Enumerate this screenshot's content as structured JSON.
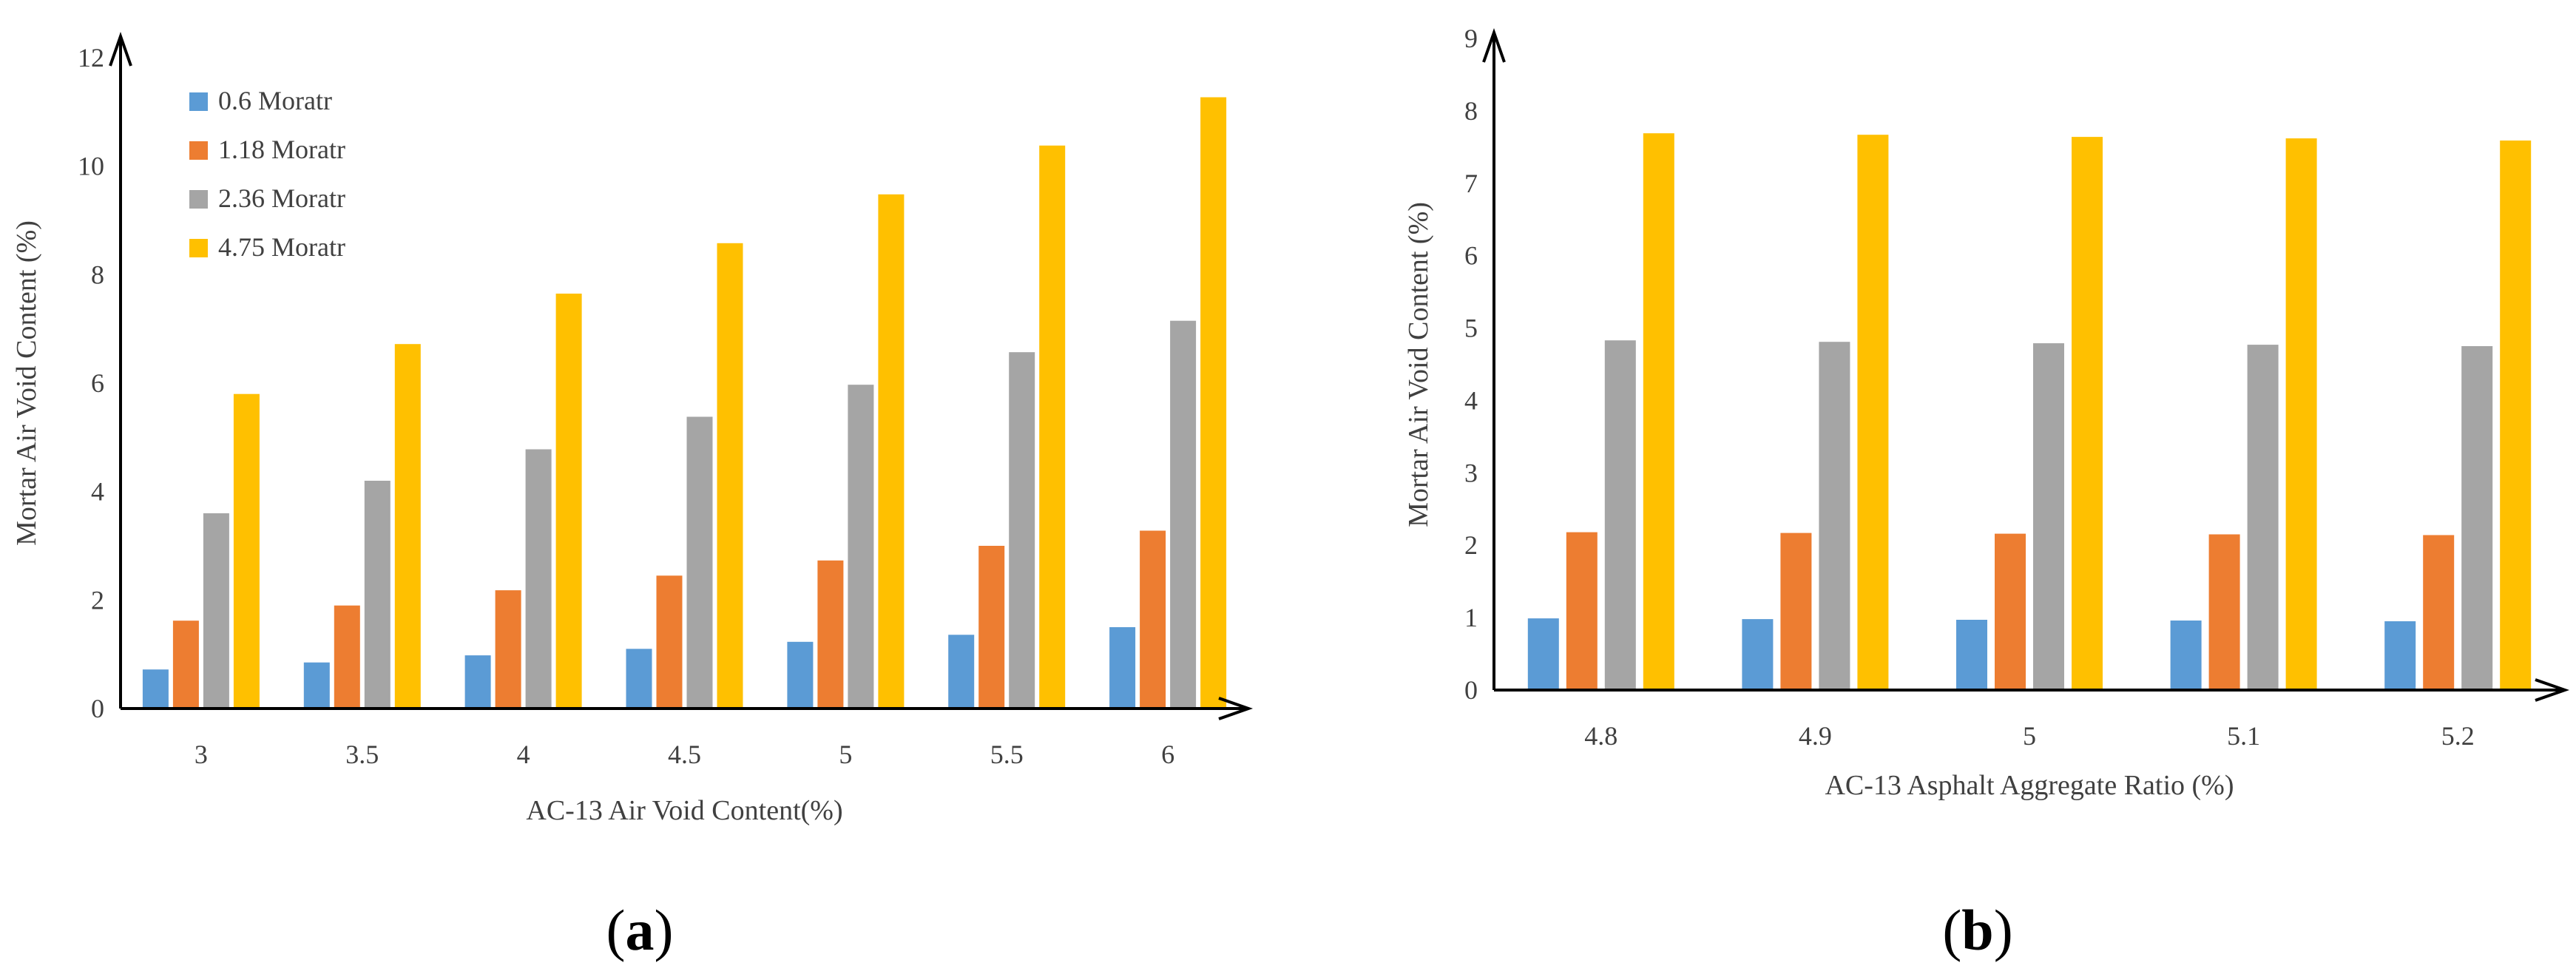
{
  "series_colors": [
    "#5B9BD5",
    "#ED7D31",
    "#A5A5A5",
    "#FFC000"
  ],
  "legend": [
    "0.6 Moratr",
    "1.18 Moratr",
    "2.36 Moratr",
    "4.75 Moratr"
  ],
  "chart_data": [
    {
      "type": "bar",
      "panel_label": "a",
      "categories": [
        "3",
        "3.5",
        "4",
        "4.5",
        "5",
        "5.5",
        "6"
      ],
      "series": [
        {
          "name": "0.6 Moratr",
          "values": [
            0.72,
            0.85,
            0.98,
            1.1,
            1.23,
            1.36,
            1.5
          ]
        },
        {
          "name": "1.18 Moratr",
          "values": [
            1.62,
            1.9,
            2.18,
            2.45,
            2.73,
            3.0,
            3.28
          ]
        },
        {
          "name": "2.36 Moratr",
          "values": [
            3.6,
            4.2,
            4.78,
            5.38,
            5.97,
            6.57,
            7.15
          ]
        },
        {
          "name": "4.75 Moratr",
          "values": [
            5.8,
            6.72,
            7.65,
            8.58,
            9.48,
            10.38,
            11.27
          ]
        }
      ],
      "title": "",
      "xlabel": "AC-13 Air Void Content(%)",
      "ylabel": "Mortar Air Void Content (%)",
      "ylim": [
        0,
        12
      ],
      "yticks": [
        "0",
        "2",
        "4",
        "6",
        "8",
        "10",
        "12"
      ],
      "grid": false,
      "legend_position": "top-left"
    },
    {
      "type": "bar",
      "panel_label": "b",
      "categories": [
        "4.8",
        "4.9",
        "5",
        "5.1",
        "5.2"
      ],
      "series": [
        {
          "name": "0.6 Moratr",
          "values": [
            0.99,
            0.98,
            0.97,
            0.96,
            0.95
          ]
        },
        {
          "name": "1.18 Moratr",
          "values": [
            2.18,
            2.17,
            2.16,
            2.15,
            2.14
          ]
        },
        {
          "name": "2.36 Moratr",
          "values": [
            4.83,
            4.81,
            4.79,
            4.77,
            4.75
          ]
        },
        {
          "name": "4.75 Moratr",
          "values": [
            7.69,
            7.67,
            7.64,
            7.62,
            7.59
          ]
        }
      ],
      "title": "",
      "xlabel": "AC-13 Asphalt Aggregate Ratio (%)",
      "ylabel": "Mortar Air Void Content (%)",
      "ylim": [
        0,
        9
      ],
      "yticks": [
        "0",
        "1",
        "2",
        "3",
        "4",
        "5",
        "6",
        "7",
        "8",
        "9"
      ],
      "grid": false,
      "legend_position": "none"
    }
  ]
}
